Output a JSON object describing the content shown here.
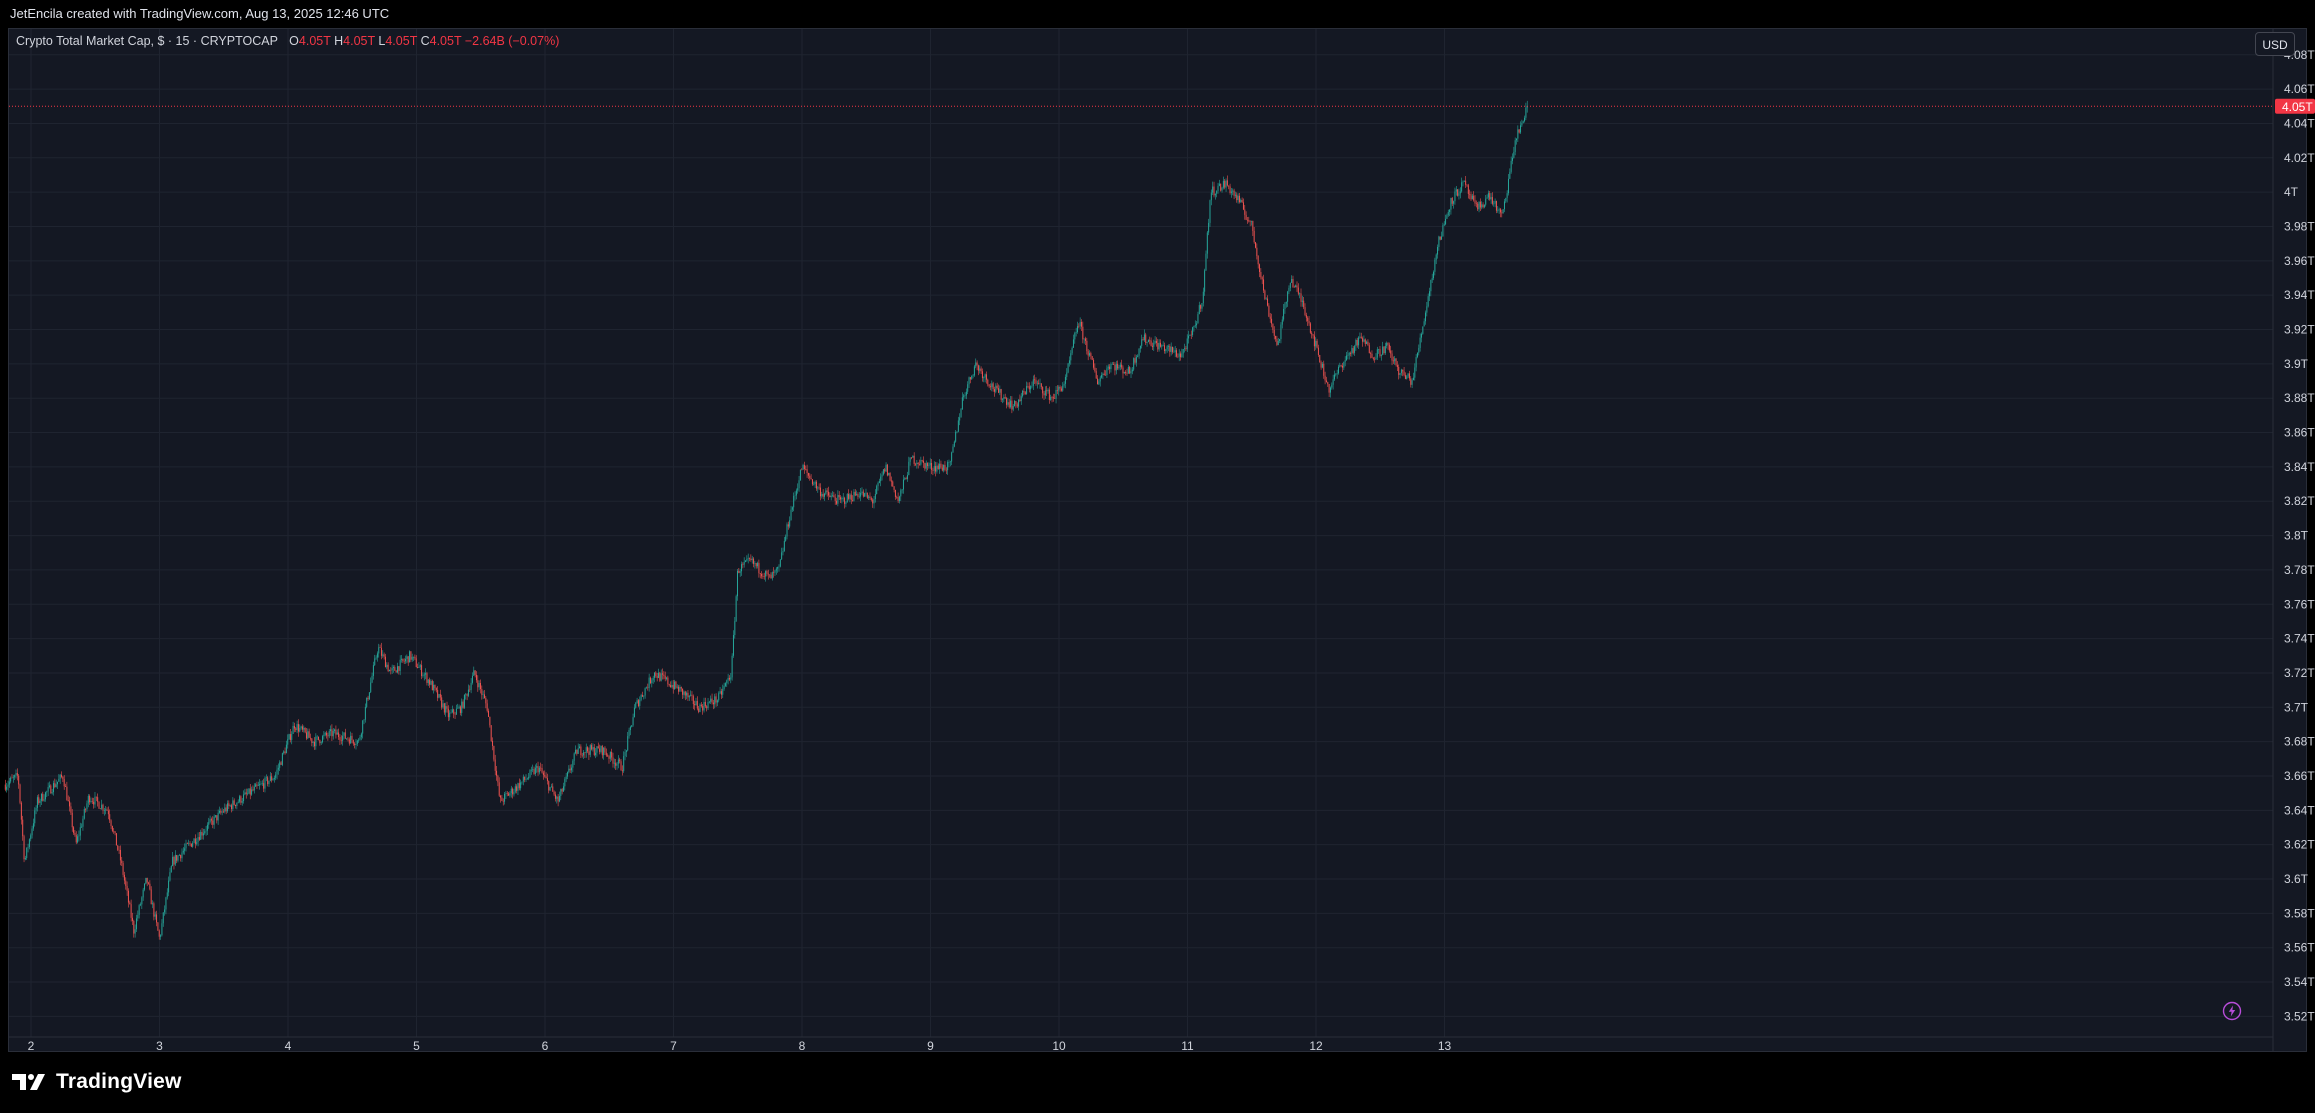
{
  "header": {
    "credit": "JetEncila created with TradingView.com, Aug 13, 2025 12:46 UTC"
  },
  "legend": {
    "symbol": "Crypto Total Market Cap, $ · 15 · CRYPTOCAP",
    "open_label": "O",
    "open_value": "4.05T",
    "high_label": "H",
    "high_value": "4.05T",
    "low_label": "L",
    "low_value": "4.05T",
    "close_label": "C",
    "close_value": "4.05T",
    "change": "−2.64B (−0.07%)"
  },
  "currency_button": "USD",
  "footer": {
    "brand": "TradingView"
  },
  "colors": {
    "up": "#26a69a",
    "down": "#ef5350",
    "background": "#141823",
    "grid": "#1f2430",
    "price_line": "#f23645",
    "axis_text": "#d1d4dc"
  },
  "icons": {
    "brand_logo": "tradingview-logo-icon",
    "alert": "lightning-bolt-icon"
  },
  "chart_data": {
    "type": "candlestick",
    "title": "Crypto Total Market Cap, $ · 15 · CRYPTOCAP",
    "interval": "15",
    "x_ticks": [
      "2",
      "3",
      "4",
      "5",
      "6",
      "7",
      "8",
      "9",
      "10",
      "11",
      "12",
      "13"
    ],
    "x_domain_days": [
      1.8,
      13.65
    ],
    "y_ticks": [
      "4.08T",
      "4.06T",
      "4.04T",
      "4.02T",
      "4T",
      "3.98T",
      "3.96T",
      "3.94T",
      "3.92T",
      "3.9T",
      "3.88T",
      "3.86T",
      "3.84T",
      "3.82T",
      "3.8T",
      "3.78T",
      "3.76T",
      "3.74T",
      "3.72T",
      "3.7T",
      "3.68T",
      "3.66T",
      "3.64T",
      "3.62T",
      "3.6T",
      "3.58T",
      "3.56T",
      "3.54T",
      "3.52T"
    ],
    "ylim": [
      3.508,
      4.095
    ],
    "last_price": 4.05,
    "last_price_label": "4.05T",
    "grid": true,
    "close_path": [
      [
        1.8,
        3.655
      ],
      [
        1.9,
        3.66
      ],
      [
        1.95,
        3.61
      ],
      [
        2.05,
        3.645
      ],
      [
        2.25,
        3.66
      ],
      [
        2.35,
        3.62
      ],
      [
        2.45,
        3.648
      ],
      [
        2.6,
        3.64
      ],
      [
        2.7,
        3.61
      ],
      [
        2.8,
        3.57
      ],
      [
        2.9,
        3.6
      ],
      [
        3.0,
        3.565
      ],
      [
        3.1,
        3.61
      ],
      [
        3.3,
        3.625
      ],
      [
        3.5,
        3.64
      ],
      [
        3.7,
        3.65
      ],
      [
        3.9,
        3.66
      ],
      [
        4.05,
        3.69
      ],
      [
        4.2,
        3.68
      ],
      [
        4.35,
        3.685
      ],
      [
        4.55,
        3.68
      ],
      [
        4.7,
        3.735
      ],
      [
        4.8,
        3.72
      ],
      [
        4.95,
        3.73
      ],
      [
        5.1,
        3.715
      ],
      [
        5.25,
        3.695
      ],
      [
        5.35,
        3.7
      ],
      [
        5.45,
        3.72
      ],
      [
        5.55,
        3.7
      ],
      [
        5.65,
        3.645
      ],
      [
        5.8,
        3.655
      ],
      [
        5.95,
        3.665
      ],
      [
        6.1,
        3.645
      ],
      [
        6.25,
        3.675
      ],
      [
        6.45,
        3.675
      ],
      [
        6.6,
        3.665
      ],
      [
        6.7,
        3.7
      ],
      [
        6.85,
        3.72
      ],
      [
        7.05,
        3.71
      ],
      [
        7.2,
        3.7
      ],
      [
        7.35,
        3.705
      ],
      [
        7.45,
        3.72
      ],
      [
        7.5,
        3.78
      ],
      [
        7.6,
        3.785
      ],
      [
        7.75,
        3.775
      ],
      [
        7.82,
        3.78
      ],
      [
        7.9,
        3.81
      ],
      [
        8.0,
        3.84
      ],
      [
        8.15,
        3.825
      ],
      [
        8.3,
        3.82
      ],
      [
        8.45,
        3.825
      ],
      [
        8.55,
        3.82
      ],
      [
        8.65,
        3.84
      ],
      [
        8.75,
        3.82
      ],
      [
        8.85,
        3.845
      ],
      [
        9.0,
        3.84
      ],
      [
        9.15,
        3.84
      ],
      [
        9.25,
        3.88
      ],
      [
        9.35,
        3.9
      ],
      [
        9.5,
        3.885
      ],
      [
        9.65,
        3.875
      ],
      [
        9.8,
        3.89
      ],
      [
        9.95,
        3.88
      ],
      [
        10.05,
        3.89
      ],
      [
        10.15,
        3.925
      ],
      [
        10.3,
        3.89
      ],
      [
        10.4,
        3.9
      ],
      [
        10.55,
        3.895
      ],
      [
        10.65,
        3.915
      ],
      [
        10.8,
        3.91
      ],
      [
        10.95,
        3.905
      ],
      [
        11.05,
        3.92
      ],
      [
        11.12,
        3.94
      ],
      [
        11.18,
        4.0
      ],
      [
        11.3,
        4.005
      ],
      [
        11.4,
        3.995
      ],
      [
        11.5,
        3.98
      ],
      [
        11.6,
        3.94
      ],
      [
        11.7,
        3.91
      ],
      [
        11.8,
        3.95
      ],
      [
        11.9,
        3.935
      ],
      [
        12.0,
        3.91
      ],
      [
        12.1,
        3.885
      ],
      [
        12.2,
        3.9
      ],
      [
        12.35,
        3.915
      ],
      [
        12.45,
        3.905
      ],
      [
        12.55,
        3.91
      ],
      [
        12.65,
        3.895
      ],
      [
        12.75,
        3.89
      ],
      [
        12.85,
        3.93
      ],
      [
        12.95,
        3.97
      ],
      [
        13.05,
        3.995
      ],
      [
        13.15,
        4.005
      ],
      [
        13.25,
        3.99
      ],
      [
        13.35,
        3.998
      ],
      [
        13.45,
        3.985
      ],
      [
        13.55,
        4.03
      ],
      [
        13.65,
        4.05
      ]
    ]
  }
}
